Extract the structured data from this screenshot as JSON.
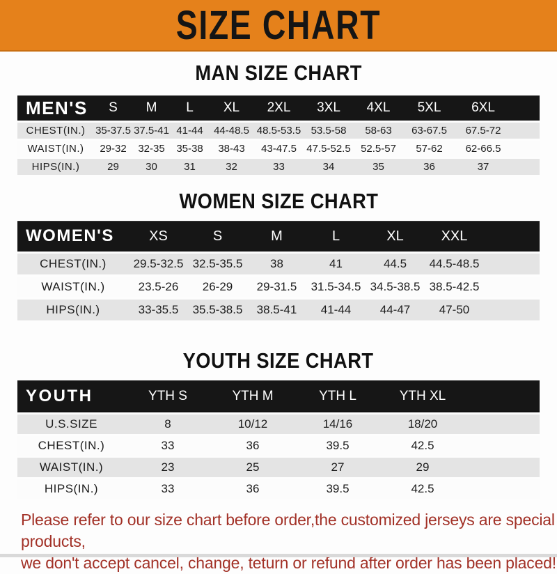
{
  "banner": {
    "title": "SIZE CHART"
  },
  "colors": {
    "banner_bg": "#E5811B",
    "banner_text": "#151515",
    "bar_bg": "#161616",
    "bar_text": "#FFFFFF",
    "row_alt_bg": "#E4E4E4",
    "row_light_bg": "#FCFCFC",
    "footer_text": "#A23127",
    "bottom_strip": "#D9D9D9"
  },
  "sections": [
    {
      "heading": "MAN SIZE CHART",
      "header": [
        "MEN'S",
        "S",
        "M",
        "L",
        "XL",
        "2XL",
        "3XL",
        "4XL",
        "5XL",
        "6XL"
      ],
      "rows": [
        {
          "label": "CHEST(IN.)",
          "values": [
            "35-37.5",
            "37.5-41",
            "41-44",
            "44-48.5",
            "48.5-53.5",
            "53.5-58",
            "58-63",
            "63-67.5",
            "67.5-72"
          ]
        },
        {
          "label": "WAIST(IN.)",
          "values": [
            "29-32",
            "32-35",
            "35-38",
            "38-43",
            "43-47.5",
            "47.5-52.5",
            "52.5-57",
            "57-62",
            "62-66.5"
          ]
        },
        {
          "label": "HIPS(IN.)",
          "values": [
            "29",
            "30",
            "31",
            "32",
            "33",
            "34",
            "35",
            "36",
            "37"
          ]
        }
      ]
    },
    {
      "heading": "WOMEN SIZE CHART",
      "header": [
        "WOMEN'S",
        "XS",
        "S",
        "M",
        "L",
        "XL",
        "XXL"
      ],
      "rows": [
        {
          "label": "CHEST(IN.)",
          "values": [
            "29.5-32.5",
            "32.5-35.5",
            "38",
            "41",
            "44.5",
            "44.5-48.5"
          ]
        },
        {
          "label": "WAIST(IN.)",
          "values": [
            "23.5-26",
            "26-29",
            "29-31.5",
            "31.5-34.5",
            "34.5-38.5",
            "38.5-42.5"
          ]
        },
        {
          "label": "HIPS(IN.)",
          "values": [
            "33-35.5",
            "35.5-38.5",
            "38.5-41",
            "41-44",
            "44-47",
            "47-50"
          ]
        }
      ]
    },
    {
      "heading": "YOUTH SIZE CHART",
      "header": [
        "YOUTH",
        "YTH S",
        "YTH M",
        "YTH L",
        "YTH XL"
      ],
      "rows": [
        {
          "label": "U.S.SIZE",
          "values": [
            "8",
            "10/12",
            "14/16",
            "18/20"
          ]
        },
        {
          "label": "CHEST(IN.)",
          "values": [
            "33",
            "36",
            "39.5",
            "42.5"
          ]
        },
        {
          "label": "WAIST(IN.)",
          "values": [
            "23",
            "25",
            "27",
            "29"
          ]
        },
        {
          "label": "HIPS(IN.)",
          "values": [
            "33",
            "36",
            "39.5",
            "42.5"
          ]
        }
      ]
    }
  ],
  "footer": {
    "line1": "Please refer to our size chart before order,the customized jerseys are special products,",
    "line2": "we don't accept cancel, change, teturn or refund after order has been placed!"
  }
}
